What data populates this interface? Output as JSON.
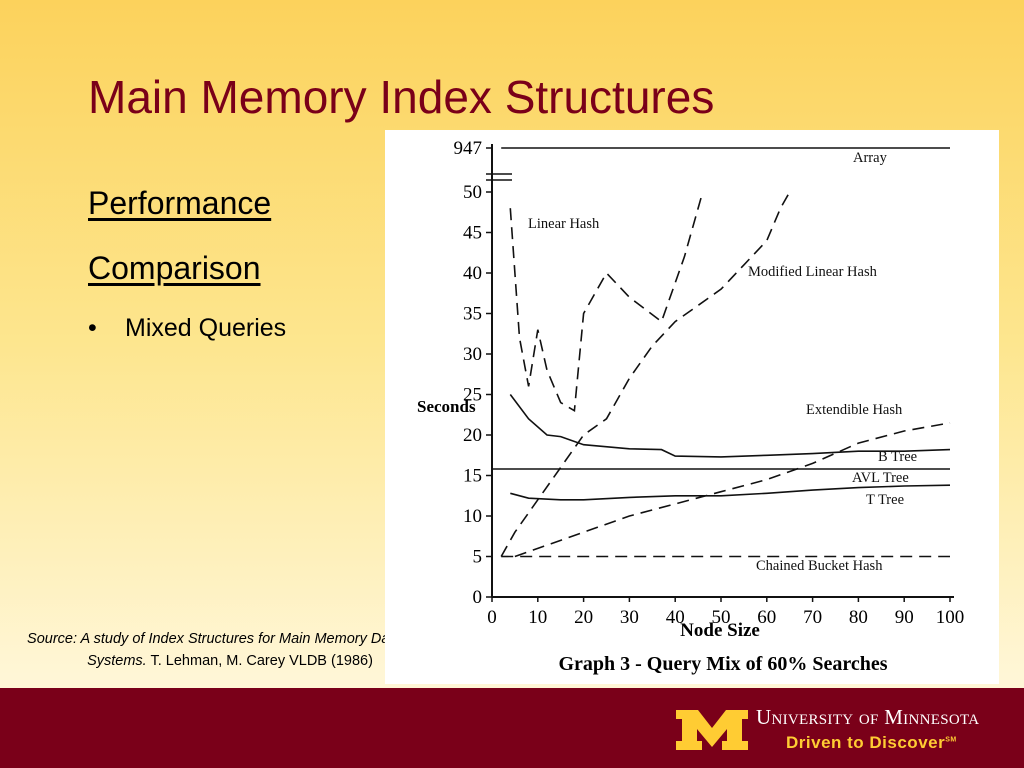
{
  "slide": {
    "title": "Main Memory Index Structures",
    "headings": [
      "Performance",
      "Comparison"
    ],
    "bullets": [
      "Mixed Queries"
    ],
    "source": {
      "citation_title": "Source: A study of Index Structures for Main Memory Database Systems.",
      "authors": "T. Lehman, M. Carey VLDB (1986)"
    },
    "footer": {
      "university": "University of Minnesota",
      "tagline": "Driven to Discover",
      "mark": "SM"
    }
  },
  "chart_data": {
    "type": "line",
    "caption": "Graph 3 - Query Mix of 60% Searches",
    "x_label": "Node Size",
    "y_label": "Seconds",
    "xlim": [
      0,
      100
    ],
    "xticks": [
      0,
      10,
      20,
      30,
      40,
      50,
      60,
      70,
      80,
      90,
      100
    ],
    "ylim": [
      0,
      50
    ],
    "yticks": [
      0,
      5,
      10,
      15,
      20,
      25,
      30,
      35,
      40,
      45,
      50
    ],
    "y_break": 947,
    "series": [
      {
        "name": "Array",
        "color": "#111111",
        "dashed": false,
        "x": [
          2,
          100
        ],
        "values": [
          947,
          947
        ]
      },
      {
        "name": "Linear Hash",
        "color": "#111111",
        "dashed": true,
        "x": [
          4,
          6,
          8,
          10,
          12,
          15,
          18,
          20,
          25,
          30,
          37,
          42,
          46
        ],
        "values": [
          48,
          32,
          26,
          33,
          28,
          24,
          23,
          35,
          40,
          37,
          34,
          42,
          50
        ]
      },
      {
        "name": "Modified Linear Hash",
        "color": "#111111",
        "dashed": true,
        "x": [
          2,
          5,
          10,
          15,
          20,
          25,
          30,
          35,
          40,
          45,
          50,
          55,
          60,
          63,
          65
        ],
        "values": [
          5,
          8,
          12,
          16,
          20,
          22,
          27,
          31,
          34,
          36,
          38,
          41,
          44,
          48,
          50
        ]
      },
      {
        "name": "Extendible Hash",
        "color": "#111111",
        "dashed": true,
        "x": [
          5,
          10,
          20,
          30,
          40,
          50,
          60,
          70,
          80,
          90,
          100
        ],
        "values": [
          5,
          6,
          8,
          10,
          11.5,
          13,
          14.5,
          16.5,
          19,
          20.5,
          21.5
        ]
      },
      {
        "name": "B Tree",
        "color": "#111111",
        "dashed": false,
        "x": [
          4,
          8,
          12,
          15,
          20,
          30,
          37,
          40,
          50,
          60,
          70,
          80,
          90,
          100
        ],
        "values": [
          25,
          22,
          20,
          19.8,
          18.8,
          18.3,
          18.2,
          17.4,
          17.3,
          17.5,
          17.7,
          18,
          18,
          18.2
        ]
      },
      {
        "name": "AVL Tree",
        "color": "#111111",
        "dashed": false,
        "x": [
          0,
          100
        ],
        "values": [
          15.8,
          15.8
        ]
      },
      {
        "name": "T Tree",
        "color": "#111111",
        "dashed": false,
        "x": [
          4,
          8,
          15,
          20,
          30,
          40,
          50,
          60,
          70,
          80,
          90,
          100
        ],
        "values": [
          12.8,
          12.2,
          12,
          12,
          12.3,
          12.5,
          12.5,
          12.8,
          13.2,
          13.5,
          13.7,
          13.8
        ]
      },
      {
        "name": "Chained Bucket Hash",
        "color": "#111111",
        "dashed": true,
        "x": [
          2,
          100
        ],
        "values": [
          5,
          5
        ]
      }
    ]
  }
}
